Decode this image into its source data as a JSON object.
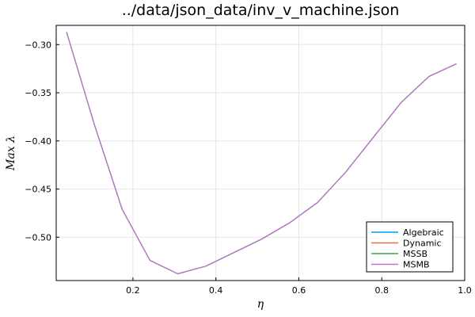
{
  "chart_data": {
    "type": "line",
    "title": "../data/json_data/inv_v_machine.json",
    "xlabel": "η",
    "ylabel": "Max λ",
    "xlim": [
      0.015,
      1.0
    ],
    "ylim": [
      -0.545,
      -0.28
    ],
    "xticks": [
      0.2,
      0.4,
      0.6,
      0.8,
      1.0
    ],
    "xtick_labels": [
      "0.2",
      "0.4",
      "0.6",
      "0.8",
      "1.0"
    ],
    "yticks": [
      -0.3,
      -0.35,
      -0.4,
      -0.45,
      -0.5
    ],
    "ytick_labels": [
      "−0.30",
      "−0.35",
      "−0.40",
      "−0.45",
      "−0.50"
    ],
    "grid": true,
    "legend_position": "bottom-right",
    "x": [
      0.04,
      0.107,
      0.174,
      0.241,
      0.308,
      0.376,
      0.443,
      0.51,
      0.578,
      0.645,
      0.712,
      0.78,
      0.847,
      0.914,
      0.98
    ],
    "series": [
      {
        "name": "Algebraic",
        "color": "#009af9",
        "values": [
          -0.287,
          -0.383,
          -0.471,
          -0.524,
          -0.538,
          -0.53,
          -0.516,
          -0.502,
          -0.485,
          -0.464,
          -0.433,
          -0.396,
          -0.36,
          -0.333,
          -0.32
        ]
      },
      {
        "name": "Dynamic",
        "color": "#e26f46",
        "values": [
          -0.287,
          -0.383,
          -0.471,
          -0.524,
          -0.538,
          -0.53,
          -0.516,
          -0.502,
          -0.485,
          -0.464,
          -0.433,
          -0.396,
          -0.36,
          -0.333,
          -0.32
        ]
      },
      {
        "name": "MSSB",
        "color": "#3da44d",
        "values": [
          -0.287,
          -0.383,
          -0.471,
          -0.524,
          -0.538,
          -0.53,
          -0.516,
          -0.502,
          -0.485,
          -0.464,
          -0.433,
          -0.396,
          -0.36,
          -0.333,
          -0.32
        ]
      },
      {
        "name": "MSMB",
        "color": "#c271d2",
        "values": [
          -0.287,
          -0.383,
          -0.471,
          -0.524,
          -0.538,
          -0.53,
          -0.516,
          -0.502,
          -0.485,
          -0.464,
          -0.433,
          -0.396,
          -0.36,
          -0.333,
          -0.32
        ]
      }
    ]
  }
}
